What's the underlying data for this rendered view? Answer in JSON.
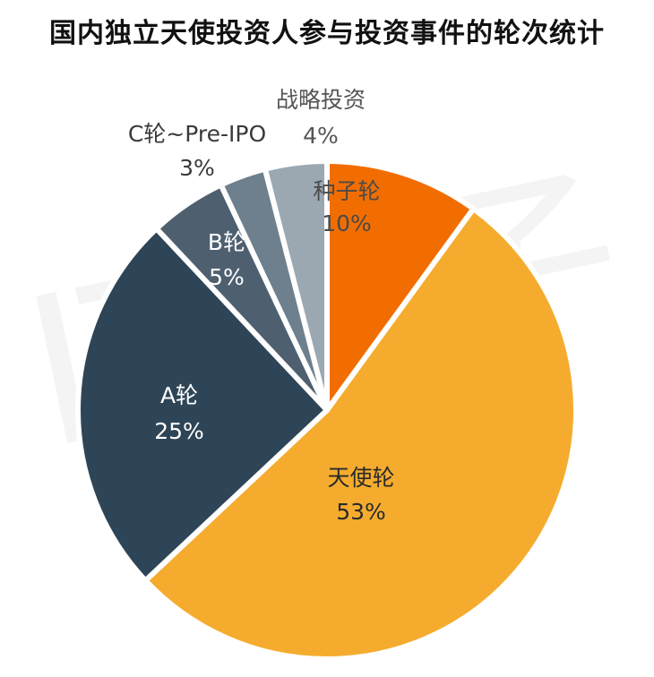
{
  "chart_data": {
    "type": "pie",
    "title": "国内独立天使投资人参与投资事件的轮次统计",
    "slices": [
      {
        "name": "种子轮",
        "value": 10,
        "label": "10%",
        "color": "#F26D00"
      },
      {
        "name": "天使轮",
        "value": 53,
        "label": "53%",
        "color": "#F5AC2E"
      },
      {
        "name": "A轮",
        "value": 25,
        "label": "25%",
        "color": "#2E4557"
      },
      {
        "name": "B轮",
        "value": 5,
        "label": "5%",
        "color": "#4E6070"
      },
      {
        "name": "C轮~Pre-IPO",
        "value": 3,
        "label": "3%",
        "color": "#6E7F8D"
      },
      {
        "name": "战略投资",
        "value": 4,
        "label": "4%",
        "color": "#9BA8B2"
      }
    ]
  },
  "watermark": {
    "text": "IT桔子",
    "url": "ITJUZI.COM"
  }
}
